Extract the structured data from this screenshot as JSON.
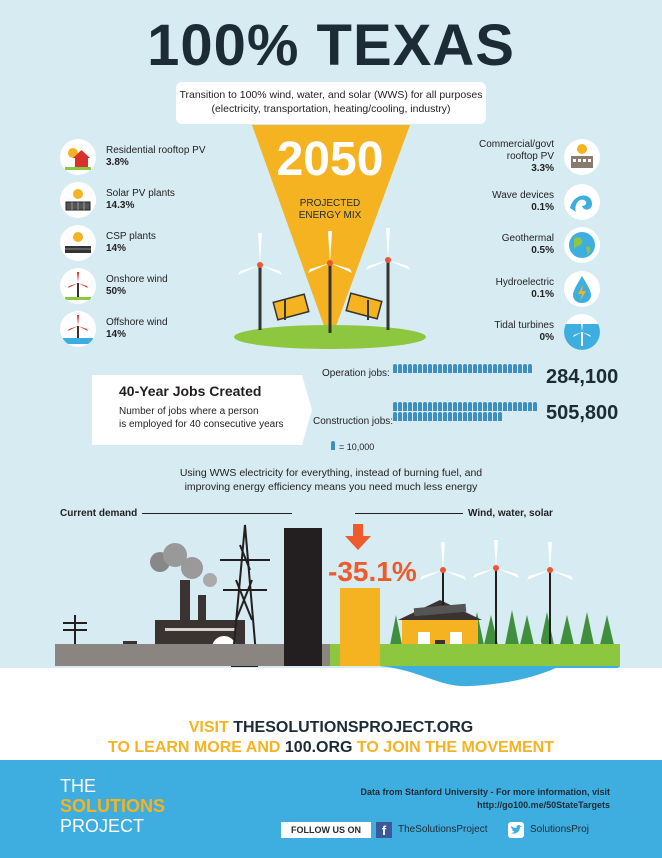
{
  "title": "100% TEXAS",
  "subtitle_line1": "Transition to 100% wind, water, and solar (WWS) for all purposes",
  "subtitle_line2": "(electricity, transportation, heating/cooling, industry)",
  "year": "2050",
  "projected_line1": "PROJECTED",
  "projected_line2": "ENERGY MIX",
  "left_sources": [
    {
      "label": "Residential rooftop PV",
      "pct": "3.8%",
      "icon": "house-sun-icon"
    },
    {
      "label": "Solar PV plants",
      "pct": "14.3%",
      "icon": "solar-panel-icon"
    },
    {
      "label": "CSP plants",
      "pct": "14%",
      "icon": "csp-icon"
    },
    {
      "label": "Onshore wind",
      "pct": "50%",
      "icon": "onshore-wind-icon"
    },
    {
      "label": "Offshore wind",
      "pct": "14%",
      "icon": "offshore-wind-icon"
    }
  ],
  "right_sources": [
    {
      "label1": "Commercial/govt",
      "label2": "rooftop PV",
      "pct": "3.3%",
      "icon": "building-sun-icon"
    },
    {
      "label1": "Wave devices",
      "label2": "",
      "pct": "0.1%",
      "icon": "wave-icon"
    },
    {
      "label1": "Geothermal",
      "label2": "",
      "pct": "0.5%",
      "icon": "globe-icon"
    },
    {
      "label1": "Hydroelectric",
      "label2": "",
      "pct": "0.1%",
      "icon": "water-drop-icon"
    },
    {
      "label1": "Tidal turbines",
      "label2": "",
      "pct": "0%",
      "icon": "tidal-turbine-icon"
    }
  ],
  "jobs": {
    "title": "40-Year Jobs Created",
    "desc_line1": "Number of jobs where a person",
    "desc_line2": "is employed for 40 consecutive years",
    "operation_label": "Operation jobs:",
    "operation_value": "284,100",
    "operation_icons": 28,
    "construction_label": "Construction jobs:",
    "construction_value": "505,800",
    "construction_icons": 51,
    "legend": "= 10,000"
  },
  "energy_text_line1": "Using WWS electricity for everything, instead of burning fuel, and",
  "energy_text_line2": "improving energy efficiency means you need much less energy",
  "current_demand": "Current demand",
  "wws_label": "Wind, water, solar",
  "reduction": "-35.1%",
  "visit": {
    "w1": "VISIT ",
    "w2": "THESOLUTIONSPROJECT.ORG",
    "w3": "TO LEARN MORE AND ",
    "w4": "100.ORG",
    "w5": " TO JOIN THE MOVEMENT"
  },
  "footer": {
    "logo_the": "THE",
    "logo_solutions": "SOLUTIONS",
    "logo_project": "PROJECT",
    "data_source": "Data from Stanford University - For more information, visit",
    "link": "http://go100.me/50StateTargets",
    "follow": "FOLLOW US ON",
    "facebook": "TheSolutionsProject",
    "twitter": "SolutionsProj"
  },
  "colors": {
    "sky": "#d6ebf2",
    "yellow": "#f6b321",
    "navy": "#1c2b35",
    "orange": "#ee5a2c",
    "footer_blue": "#3eaee0",
    "person_blue": "#3e8ec0"
  }
}
